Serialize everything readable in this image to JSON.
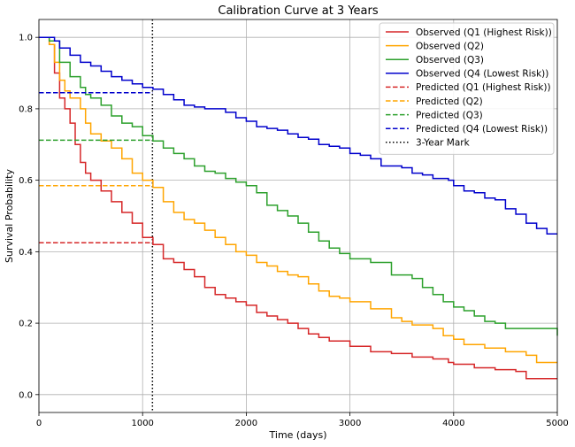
{
  "chart_data": {
    "type": "line",
    "title": "Calibration Curve at 3 Years",
    "xlabel": "Time (days)",
    "ylabel": "Survival Probability",
    "xlim": [
      0,
      5000
    ],
    "ylim": [
      -0.05,
      1.05
    ],
    "xticks": [
      0,
      1000,
      2000,
      3000,
      4000,
      5000
    ],
    "yticks": [
      0.0,
      0.2,
      0.4,
      0.6,
      0.8,
      1.0
    ],
    "xtick_labels": [
      "0",
      "1000",
      "2000",
      "3000",
      "4000",
      "5000"
    ],
    "ytick_labels": [
      "0.0",
      "0.2",
      "0.4",
      "0.6",
      "0.8",
      "1.0"
    ],
    "grid": true,
    "legend_position": "top-right",
    "series": [
      {
        "name": "Observed (Q1 (Highest Risk))",
        "style": "step",
        "color": "#d62728",
        "x": [
          0,
          100,
          150,
          200,
          250,
          300,
          350,
          400,
          450,
          500,
          600,
          700,
          800,
          900,
          1000,
          1100,
          1200,
          1300,
          1400,
          1500,
          1600,
          1700,
          1800,
          1900,
          2000,
          2100,
          2200,
          2300,
          2400,
          2500,
          2600,
          2700,
          2800,
          3000,
          3200,
          3400,
          3600,
          3800,
          3950,
          4000,
          4200,
          4400,
          4600,
          4700,
          5000
        ],
        "y": [
          1.0,
          0.98,
          0.9,
          0.83,
          0.8,
          0.76,
          0.7,
          0.65,
          0.62,
          0.6,
          0.57,
          0.54,
          0.51,
          0.48,
          0.44,
          0.42,
          0.38,
          0.37,
          0.35,
          0.33,
          0.3,
          0.28,
          0.27,
          0.26,
          0.25,
          0.23,
          0.22,
          0.21,
          0.2,
          0.185,
          0.17,
          0.16,
          0.15,
          0.135,
          0.12,
          0.115,
          0.105,
          0.1,
          0.09,
          0.085,
          0.075,
          0.07,
          0.065,
          0.045,
          0.045
        ]
      },
      {
        "name": "Observed (Q2)",
        "style": "step",
        "color": "#ffa500",
        "x": [
          0,
          100,
          150,
          200,
          250,
          300,
          400,
          450,
          500,
          600,
          700,
          800,
          900,
          1000,
          1100,
          1200,
          1300,
          1400,
          1500,
          1600,
          1700,
          1800,
          1900,
          2000,
          2100,
          2200,
          2300,
          2400,
          2500,
          2600,
          2700,
          2800,
          2900,
          3000,
          3200,
          3400,
          3500,
          3600,
          3800,
          3900,
          4000,
          4100,
          4300,
          4500,
          4700,
          4800,
          5000
        ],
        "y": [
          1.0,
          0.98,
          0.93,
          0.88,
          0.85,
          0.83,
          0.8,
          0.76,
          0.73,
          0.71,
          0.69,
          0.66,
          0.62,
          0.6,
          0.58,
          0.54,
          0.51,
          0.49,
          0.48,
          0.46,
          0.44,
          0.42,
          0.4,
          0.39,
          0.37,
          0.36,
          0.345,
          0.335,
          0.33,
          0.31,
          0.29,
          0.275,
          0.27,
          0.26,
          0.24,
          0.215,
          0.205,
          0.195,
          0.185,
          0.165,
          0.155,
          0.14,
          0.13,
          0.12,
          0.11,
          0.09,
          0.09
        ]
      },
      {
        "name": "Observed (Q3)",
        "style": "step",
        "color": "#2ca02c",
        "x": [
          0,
          100,
          200,
          300,
          400,
          450,
          500,
          600,
          700,
          800,
          900,
          1000,
          1100,
          1200,
          1300,
          1400,
          1500,
          1600,
          1700,
          1800,
          1900,
          2000,
          2100,
          2200,
          2300,
          2400,
          2500,
          2600,
          2700,
          2800,
          2900,
          3000,
          3200,
          3400,
          3600,
          3700,
          3800,
          3900,
          4000,
          4100,
          4200,
          4300,
          4400,
          4500,
          4800,
          5000
        ],
        "y": [
          1.0,
          0.99,
          0.93,
          0.89,
          0.86,
          0.84,
          0.83,
          0.81,
          0.78,
          0.76,
          0.75,
          0.725,
          0.71,
          0.69,
          0.675,
          0.66,
          0.64,
          0.625,
          0.62,
          0.605,
          0.595,
          0.585,
          0.565,
          0.53,
          0.515,
          0.5,
          0.48,
          0.455,
          0.43,
          0.41,
          0.395,
          0.38,
          0.37,
          0.335,
          0.325,
          0.3,
          0.28,
          0.26,
          0.245,
          0.235,
          0.22,
          0.205,
          0.2,
          0.185,
          0.185,
          0.165
        ]
      },
      {
        "name": "Observed (Q4 (Lowest Risk))",
        "style": "step",
        "color": "#0000cc",
        "x": [
          0,
          150,
          200,
          300,
          400,
          500,
          600,
          700,
          800,
          900,
          1000,
          1100,
          1200,
          1300,
          1400,
          1500,
          1600,
          1700,
          1800,
          1900,
          2000,
          2100,
          2200,
          2300,
          2400,
          2500,
          2600,
          2700,
          2800,
          2900,
          3000,
          3100,
          3200,
          3300,
          3400,
          3500,
          3600,
          3700,
          3800,
          3900,
          3950,
          4000,
          4100,
          4200,
          4300,
          4400,
          4500,
          4600,
          4700,
          4800,
          4900,
          5000
        ],
        "y": [
          1.0,
          0.99,
          0.97,
          0.95,
          0.93,
          0.92,
          0.905,
          0.89,
          0.88,
          0.87,
          0.86,
          0.855,
          0.84,
          0.825,
          0.81,
          0.805,
          0.8,
          0.8,
          0.79,
          0.775,
          0.765,
          0.75,
          0.745,
          0.74,
          0.73,
          0.72,
          0.715,
          0.7,
          0.695,
          0.69,
          0.675,
          0.67,
          0.66,
          0.64,
          0.64,
          0.635,
          0.62,
          0.615,
          0.605,
          0.605,
          0.6,
          0.585,
          0.57,
          0.565,
          0.55,
          0.545,
          0.52,
          0.505,
          0.48,
          0.465,
          0.45,
          0.45
        ]
      },
      {
        "name": "Predicted (Q1 (Highest Risk))",
        "style": "dashed",
        "color": "#d62728",
        "x": [
          0,
          1095
        ],
        "y": [
          0.425,
          0.425
        ]
      },
      {
        "name": "Predicted (Q2)",
        "style": "dashed",
        "color": "#ffa500",
        "x": [
          0,
          1095
        ],
        "y": [
          0.585,
          0.585
        ]
      },
      {
        "name": "Predicted (Q3)",
        "style": "dashed",
        "color": "#2ca02c",
        "x": [
          0,
          1095
        ],
        "y": [
          0.712,
          0.712
        ]
      },
      {
        "name": "Predicted (Q4 (Lowest Risk))",
        "style": "dashed",
        "color": "#0000cc",
        "x": [
          0,
          1095
        ],
        "y": [
          0.845,
          0.845
        ]
      }
    ],
    "vline": {
      "name": "3-Year Mark",
      "x": 1095,
      "style": "dotted",
      "color": "#000000"
    }
  }
}
